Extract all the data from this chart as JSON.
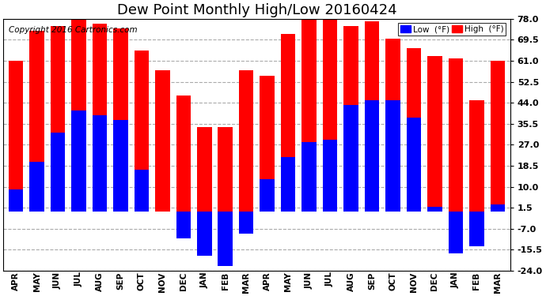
{
  "title": "Dew Point Monthly High/Low 20160424",
  "copyright": "Copyright 2016 Cartronics.com",
  "legend_low_label": "Low  (°F)",
  "legend_high_label": "High  (°F)",
  "months": [
    "APR",
    "MAY",
    "JUN",
    "JUL",
    "AUG",
    "SEP",
    "OCT",
    "NOV",
    "DEC",
    "JAN",
    "FEB",
    "MAR",
    "APR",
    "MAY",
    "JUN",
    "JUL",
    "AUG",
    "SEP",
    "OCT",
    "NOV",
    "DEC",
    "JAN",
    "FEB",
    "MAR"
  ],
  "high_values": [
    61,
    73,
    75,
    78,
    76,
    74,
    65,
    57,
    47,
    34,
    34,
    57,
    55,
    72,
    78,
    79,
    75,
    77,
    70,
    66,
    63,
    62,
    45,
    61
  ],
  "low_values": [
    9,
    20,
    32,
    41,
    39,
    37,
    17,
    0,
    -11,
    -18,
    -22,
    -9,
    13,
    22,
    28,
    29,
    43,
    45,
    45,
    38,
    2,
    -17,
    -14,
    3
  ],
  "ylim_min": -24.0,
  "ylim_max": 78.0,
  "yticks": [
    -24.0,
    -15.5,
    -7.0,
    1.5,
    10.0,
    18.5,
    27.0,
    35.5,
    44.0,
    52.5,
    61.0,
    69.5,
    78.0
  ],
  "high_color": "#FF0000",
  "low_color": "#0000FF",
  "bg_color": "#FFFFFF",
  "grid_color": "#AAAAAA",
  "title_fontsize": 13,
  "copyright_fontsize": 7.5
}
